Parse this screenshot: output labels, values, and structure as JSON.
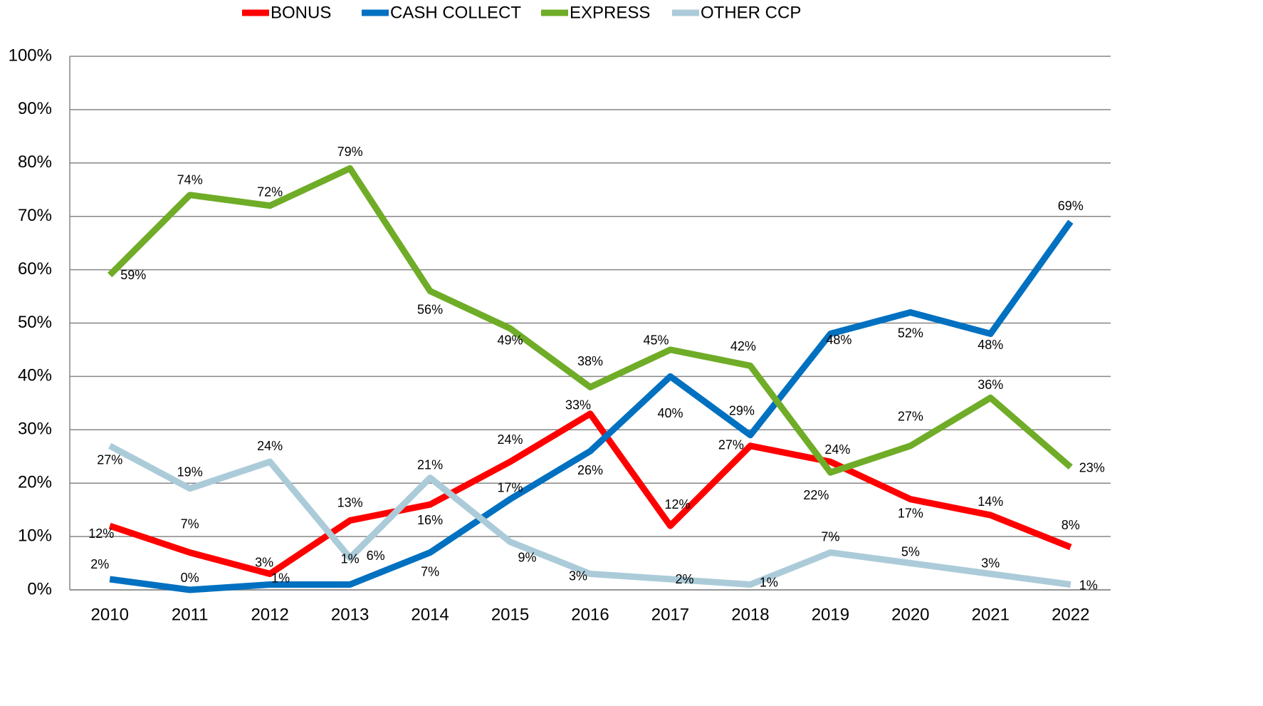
{
  "chart_data": {
    "type": "line",
    "categories": [
      "2010",
      "2011",
      "2012",
      "2013",
      "2014",
      "2015",
      "2016",
      "2017",
      "2018",
      "2019",
      "2020",
      "2021",
      "2022"
    ],
    "series": [
      {
        "name": "BONUS",
        "color": "#ff0000",
        "values": [
          12,
          7,
          3,
          13,
          16,
          24,
          33,
          12,
          27,
          24,
          17,
          14,
          8
        ],
        "value_labels": [
          "12%",
          "7%",
          "3%",
          "13%",
          "16%",
          "24%",
          "33%",
          "12%",
          "27%",
          "24%",
          "17%",
          "14%",
          "8%"
        ]
      },
      {
        "name": "CASH COLLECT",
        "color": "#0070c0",
        "values": [
          2,
          0,
          1,
          1,
          7,
          17,
          26,
          40,
          29,
          48,
          52,
          48,
          69
        ],
        "value_labels": [
          "2%",
          "0%",
          "1%",
          "1%",
          "7%",
          "17%",
          "26%",
          "40%",
          "29%",
          "48%",
          "52%",
          "48%",
          "69%"
        ]
      },
      {
        "name": "EXPRESS",
        "color": "#6fac27",
        "values": [
          59,
          74,
          72,
          79,
          56,
          49,
          38,
          45,
          42,
          22,
          27,
          36,
          23
        ],
        "value_labels": [
          "59%",
          "74%",
          "72%",
          "79%",
          "56%",
          "49%",
          "38%",
          "45%",
          "42%",
          "22%",
          "27%",
          "36%",
          "23%"
        ]
      },
      {
        "name": "OTHER CCP",
        "color": "#abcbd9",
        "values": [
          27,
          19,
          24,
          6,
          21,
          9,
          3,
          2,
          1,
          7,
          5,
          3,
          1
        ],
        "value_labels": [
          "27%",
          "19%",
          "24%",
          "6%",
          "21%",
          "9%",
          "3%",
          "2%",
          "1%",
          "7%",
          "5%",
          "3%",
          "1%"
        ]
      }
    ],
    "ylim": [
      0,
      100
    ],
    "yticks": [
      {
        "value": 0,
        "label": "0%"
      },
      {
        "value": 10,
        "label": "10%"
      },
      {
        "value": 20,
        "label": "20%"
      },
      {
        "value": 30,
        "label": "30%"
      },
      {
        "value": 40,
        "label": "40%"
      },
      {
        "value": 50,
        "label": "50%"
      },
      {
        "value": 60,
        "label": "60%"
      },
      {
        "value": 70,
        "label": "70%"
      },
      {
        "value": 80,
        "label": "80%"
      },
      {
        "value": 90,
        "label": "90%"
      },
      {
        "value": 100,
        "label": "100%"
      }
    ],
    "grid": true,
    "legend": "top"
  }
}
